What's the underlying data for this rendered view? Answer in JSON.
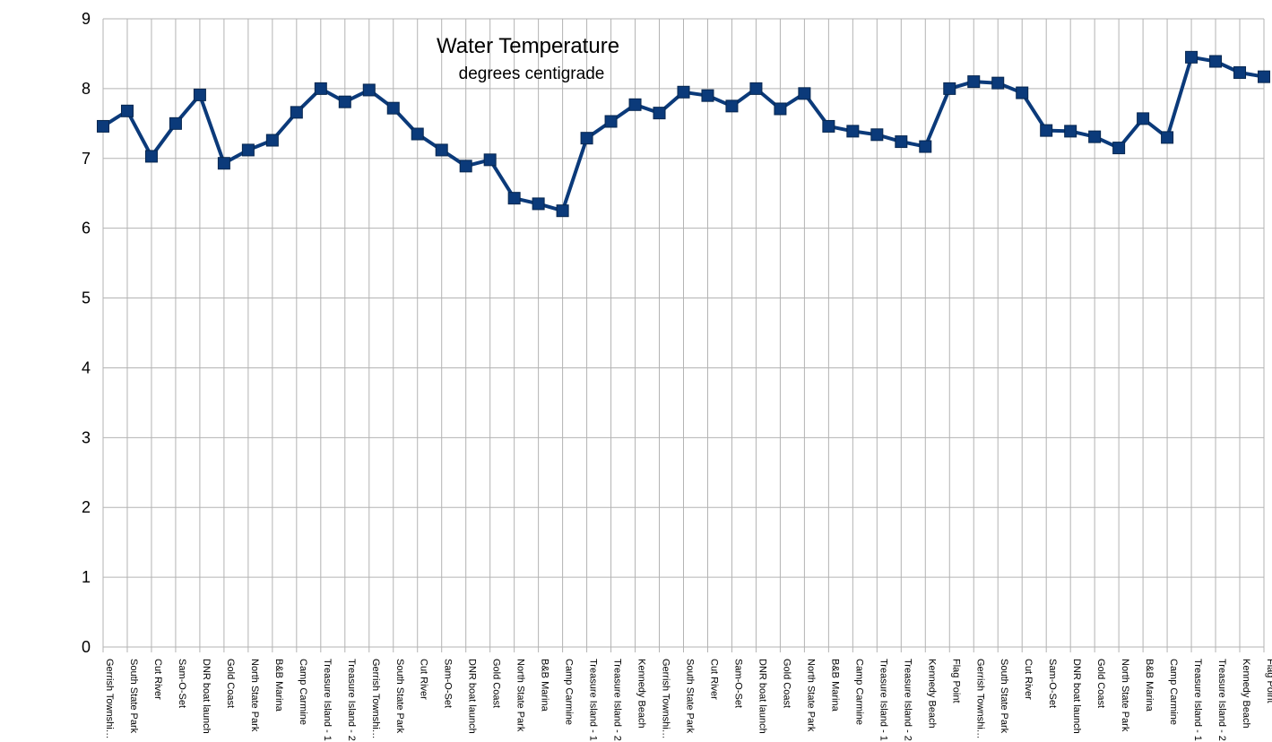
{
  "chart_data": {
    "type": "line",
    "title": "Water Temperature",
    "subtitle": "degrees centigrade",
    "xlabel": "",
    "ylabel": "",
    "ylim": [
      0,
      9
    ],
    "y_ticks": [
      "0",
      "1",
      "2",
      "3",
      "4",
      "5",
      "6",
      "7",
      "8",
      "9"
    ],
    "grid": "on",
    "legend": "none",
    "marker": "square",
    "colors": {
      "series": "#0b3a7a",
      "grid": "#b3b3b3",
      "axis": "#b3b3b3",
      "text": "#000000"
    },
    "categories": [
      "Gerrish Townshi…",
      "South State Park",
      "Cut River",
      "Sam-O-Set",
      "DNR boat launch",
      "Gold Coast",
      "North State Park",
      "B&B Marina",
      "Camp Carmine",
      "Treasure Island - 1",
      "Treasure Island - 2",
      "Gerrish Townshi…",
      "South State Park",
      "Cut River",
      "Sam-O-Set",
      "DNR boat launch",
      "Gold Coast",
      "North State Park",
      "B&B Marina",
      "Camp Carmine",
      "Treasure Island - 1",
      "Treasure Island - 2",
      "Kennedy Beach",
      "Gerrish Townshi…",
      "South State Park",
      "Cut River",
      "Sam-O-Set",
      "DNR boat launch",
      "Gold Coast",
      "North State Park",
      "B&B Marina",
      "Camp Carmine",
      "Treasure Island - 1",
      "Treasure Island - 2",
      "Kennedy Beach",
      "Flag Point",
      "Gerrish Townshi…",
      "South State Park",
      "Cut River",
      "Sam-O-Set",
      "DNR boat launch",
      "Gold Coast",
      "North State Park",
      "B&B Marina",
      "Camp Carmine",
      "Treasure Island - 1",
      "Treasure Island - 2",
      "Kennedy Beach",
      "Flag Point"
    ],
    "series": [
      {
        "values": [
          7.46,
          7.68,
          7.03,
          7.5,
          7.91,
          6.93,
          7.12,
          7.26,
          7.66,
          8.0,
          7.81,
          7.98,
          7.72,
          7.35,
          7.12,
          6.89,
          6.98,
          6.43,
          6.35,
          6.25,
          7.29,
          7.53,
          7.77,
          7.65,
          7.95,
          7.9,
          7.75,
          8.0,
          7.71,
          7.93,
          7.46,
          7.39,
          7.34,
          7.24,
          7.17,
          8.0,
          8.1,
          8.08,
          7.94,
          7.4,
          7.39,
          7.31,
          7.15,
          7.57,
          7.3,
          8.45,
          8.39,
          8.23,
          8.17
        ]
      }
    ]
  }
}
